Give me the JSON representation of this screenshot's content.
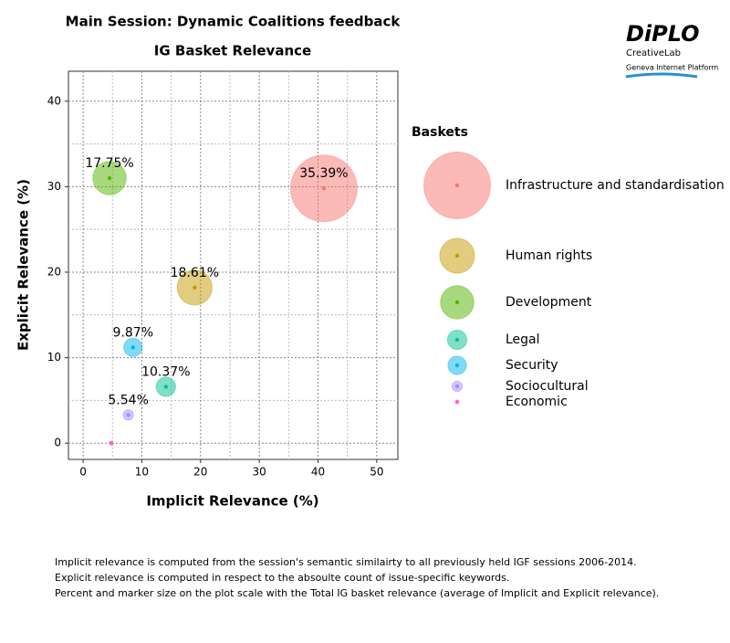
{
  "chart_data": {
    "type": "bubble",
    "title": "Main Session: Dynamic Coalitions feedback",
    "subtitle": "IG Basket Relevance",
    "x_label": "Implicit Relevance (%)",
    "y_label": "Explicit Relevance (%)",
    "legend_title": "Baskets",
    "xlim": [
      -2.5,
      53.6
    ],
    "xticks": [
      0,
      10,
      20,
      30,
      40,
      50
    ],
    "minor_xticks": [
      5,
      15,
      25,
      35,
      45
    ],
    "ylim": [
      -1.9,
      43.5
    ],
    "yticks": [
      0,
      10,
      20,
      30,
      40
    ],
    "minor_yticks": [
      5,
      15,
      25,
      35
    ],
    "grid": true,
    "series": [
      {
        "name": "Infrastructure and standardisation",
        "color": "#F8766D",
        "x": 41,
        "y": 29.8,
        "size": 35.39,
        "value_label": "35.39%"
      },
      {
        "name": "Human rights",
        "color": "#C49A00",
        "x": 19,
        "y": 18.2,
        "size": 18.61,
        "value_label": "18.61%"
      },
      {
        "name": "Development",
        "color": "#53B400",
        "x": 4.5,
        "y": 31,
        "size": 17.75,
        "value_label": "17.75%"
      },
      {
        "name": "Legal",
        "color": "#00C094",
        "x": 14.1,
        "y": 6.6,
        "size": 10.37,
        "value_label": "10.37%"
      },
      {
        "name": "Security",
        "color": "#00B6EB",
        "x": 8.5,
        "y": 11.2,
        "size": 9.87,
        "value_label": "9.87%"
      },
      {
        "name": "Sociocultural",
        "color": "#A58AFF",
        "x": 7.7,
        "y": 3.3,
        "size": 5.54,
        "value_label": "5.54%"
      },
      {
        "name": "Economic",
        "color": "#FB61D7",
        "x": 4.8,
        "y": 0,
        "size": 2,
        "value_label": null
      }
    ]
  },
  "logo": {
    "name": "DiPLO",
    "line1": "CreativeLab",
    "line2": "Geneva Internet Platform"
  },
  "notes": [
    "Implicit relevance is computed from the session's semantic similairty to all previously held IGF sessions 2006-2014.",
    "Explicit relevance is computed in respect to the absoulte count of issue-specific keywords.",
    "Percent and marker size on the plot scale with the Total IG basket relevance (average of Implicit and Explicit relevance)."
  ]
}
